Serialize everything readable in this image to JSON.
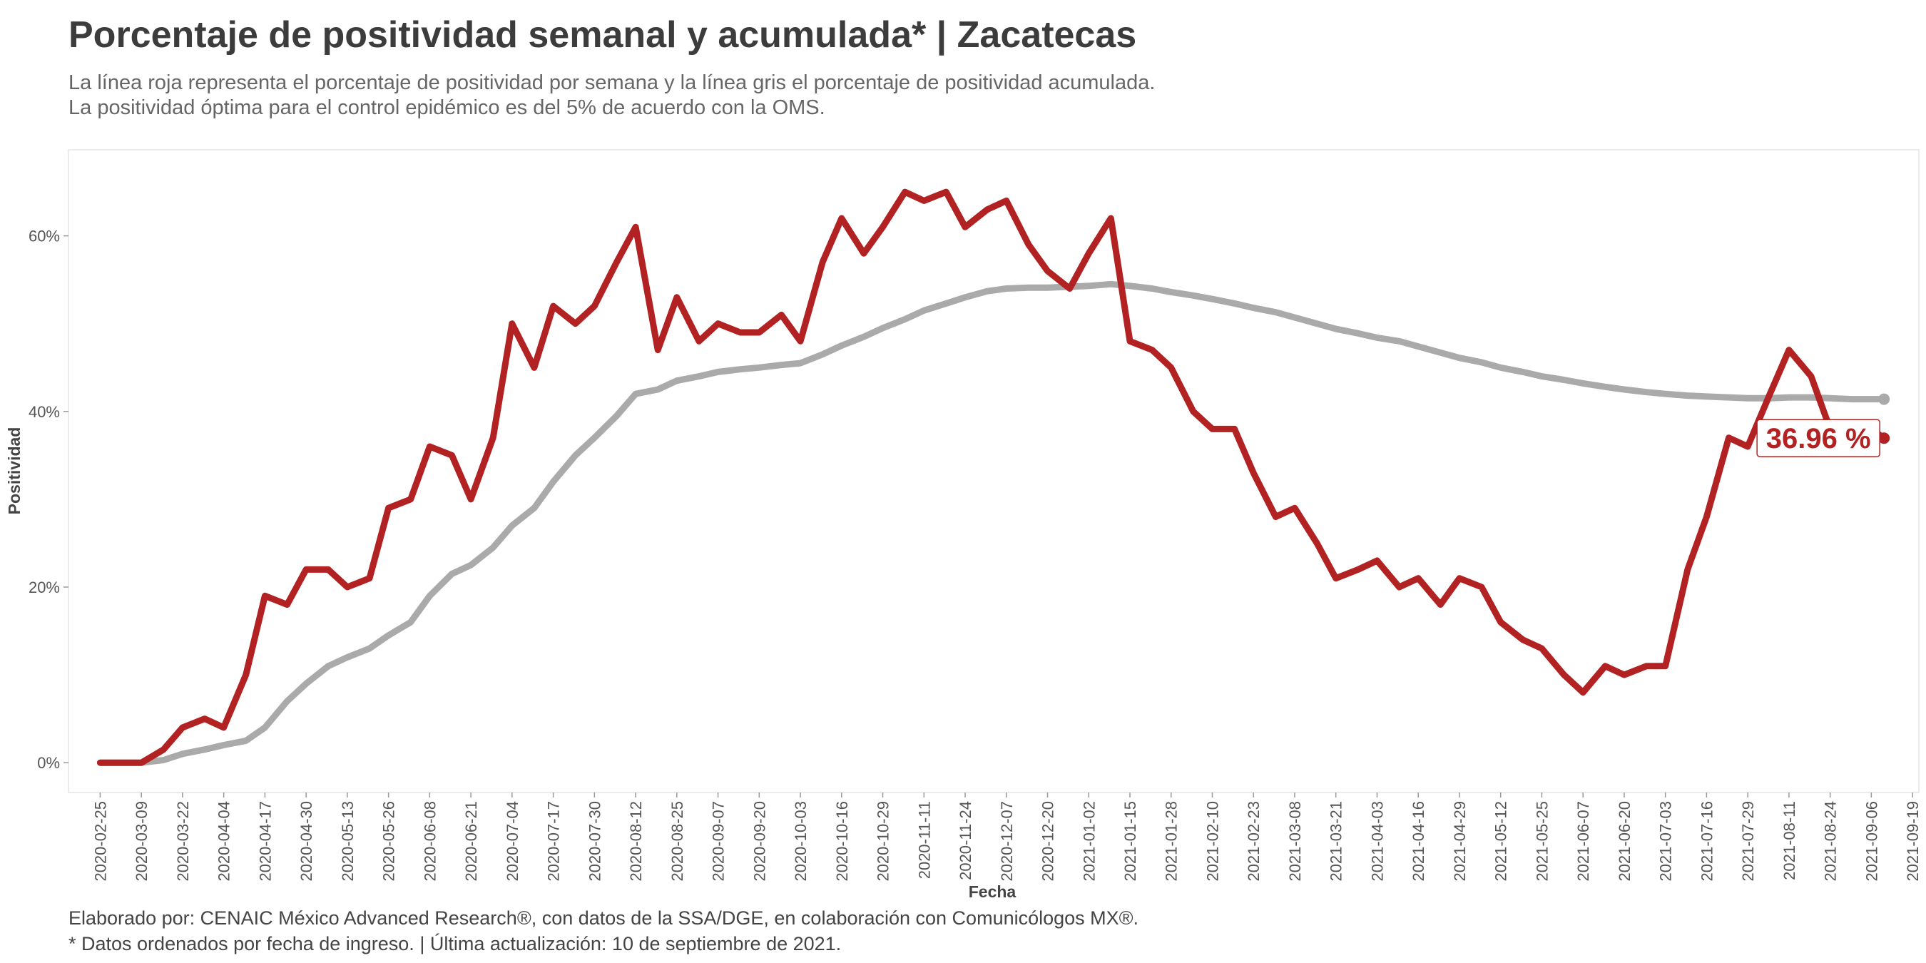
{
  "chart_data": {
    "type": "line",
    "title": "Porcentaje de positividad semanal y acumulada* | Zacatecas",
    "subtitle": [
      "La línea roja representa el porcentaje de positividad por semana y la línea gris el porcentaje de positividad acumulada.",
      "La positividad óptima para el control epidémico es del 5% de acuerdo con la OMS."
    ],
    "xlabel": "Fecha",
    "ylabel": "Positividad",
    "footer": [
      "Elaborado por: CENAIC México Advanced Research®, con datos de la SSA/DGE, en colaboración con Comunicólogos MX®.",
      "* Datos ordenados por fecha de ingreso. | Última actualización: 10 de septiembre de 2021."
    ],
    "x": [
      "2020-02-25",
      "2020-03-03",
      "2020-03-09",
      "2020-03-16",
      "2020-03-22",
      "2020-03-29",
      "2020-04-04",
      "2020-04-11",
      "2020-04-17",
      "2020-04-24",
      "2020-04-30",
      "2020-05-07",
      "2020-05-13",
      "2020-05-20",
      "2020-05-26",
      "2020-06-02",
      "2020-06-08",
      "2020-06-15",
      "2020-06-21",
      "2020-06-28",
      "2020-07-04",
      "2020-07-11",
      "2020-07-17",
      "2020-07-24",
      "2020-07-30",
      "2020-08-06",
      "2020-08-12",
      "2020-08-19",
      "2020-08-25",
      "2020-09-01",
      "2020-09-07",
      "2020-09-14",
      "2020-09-20",
      "2020-09-27",
      "2020-10-03",
      "2020-10-10",
      "2020-10-16",
      "2020-10-23",
      "2020-10-29",
      "2020-11-05",
      "2020-11-11",
      "2020-11-18",
      "2020-11-24",
      "2020-12-01",
      "2020-12-07",
      "2020-12-14",
      "2020-12-20",
      "2020-12-27",
      "2021-01-02",
      "2021-01-09",
      "2021-01-15",
      "2021-01-22",
      "2021-01-28",
      "2021-02-04",
      "2021-02-10",
      "2021-02-17",
      "2021-02-23",
      "2021-03-02",
      "2021-03-08",
      "2021-03-15",
      "2021-03-21",
      "2021-03-28",
      "2021-04-03",
      "2021-04-10",
      "2021-04-16",
      "2021-04-23",
      "2021-04-29",
      "2021-05-06",
      "2021-05-12",
      "2021-05-19",
      "2021-05-25",
      "2021-06-01",
      "2021-06-07",
      "2021-06-14",
      "2021-06-20",
      "2021-06-27",
      "2021-07-03",
      "2021-07-10",
      "2021-07-16",
      "2021-07-23",
      "2021-07-29",
      "2021-08-05",
      "2021-08-11",
      "2021-08-18",
      "2021-08-24",
      "2021-08-31",
      "2021-09-06",
      "2021-09-10"
    ],
    "series": [
      {
        "color": "#b22222",
        "values": [
          0,
          0,
          0,
          1.5,
          4,
          5,
          4,
          10,
          19,
          18,
          22,
          22,
          20,
          21,
          29,
          30,
          36,
          35,
          30,
          37,
          50,
          45,
          52,
          50,
          52,
          57,
          61,
          47,
          53,
          48,
          50,
          49,
          49,
          51,
          48,
          57,
          62,
          58,
          61,
          65,
          64,
          65,
          61,
          63,
          64,
          59,
          56,
          54,
          58,
          62,
          48,
          47,
          45,
          40,
          38,
          38,
          33,
          28,
          29,
          25,
          21,
          22,
          23,
          20,
          21,
          18,
          21,
          20,
          16,
          14,
          13,
          10,
          8,
          11,
          10,
          11,
          11,
          22,
          28,
          37,
          36,
          42,
          47,
          44,
          38,
          38,
          38,
          36.96
        ]
      },
      {
        "color": "#aaaaaa",
        "values": [
          0,
          0,
          0,
          0.3,
          1,
          1.5,
          2,
          2.5,
          4,
          7,
          9,
          11,
          12,
          13,
          14.5,
          16,
          19,
          21.5,
          22.5,
          24.5,
          27,
          29,
          32,
          35,
          37,
          39.5,
          42,
          42.5,
          43.5,
          44,
          44.5,
          44.8,
          45,
          45.3,
          45.5,
          46.5,
          47.5,
          48.5,
          49.5,
          50.5,
          51.5,
          52.3,
          53,
          53.7,
          54,
          54.1,
          54.1,
          54.2,
          54.3,
          54.5,
          54.3,
          54,
          53.6,
          53.2,
          52.8,
          52.3,
          51.8,
          51.3,
          50.7,
          50,
          49.4,
          48.9,
          48.4,
          48,
          47.4,
          46.7,
          46.1,
          45.6,
          45,
          44.5,
          44,
          43.6,
          43.2,
          42.8,
          42.5,
          42.2,
          42,
          41.8,
          41.7,
          41.6,
          41.5,
          41.5,
          41.6,
          41.6,
          41.5,
          41.4,
          41.4,
          41.4
        ]
      }
    ],
    "annotations": [
      {
        "text": "36.96 %",
        "x": "2021-09-10",
        "y": 36.96
      }
    ],
    "xlim": [
      "2020-02-15",
      "2021-09-21"
    ],
    "xticks": [
      "2020-02-25",
      "2020-03-09",
      "2020-03-22",
      "2020-04-04",
      "2020-04-17",
      "2020-04-30",
      "2020-05-13",
      "2020-05-26",
      "2020-06-08",
      "2020-06-21",
      "2020-07-04",
      "2020-07-17",
      "2020-07-30",
      "2020-08-12",
      "2020-08-25",
      "2020-09-07",
      "2020-09-20",
      "2020-10-03",
      "2020-10-16",
      "2020-10-29",
      "2020-11-11",
      "2020-11-24",
      "2020-12-07",
      "2020-12-20",
      "2021-01-02",
      "2021-01-15",
      "2021-01-28",
      "2021-02-10",
      "2021-02-23",
      "2021-03-08",
      "2021-03-21",
      "2021-04-03",
      "2021-04-16",
      "2021-04-29",
      "2021-05-12",
      "2021-05-25",
      "2021-06-07",
      "2021-06-20",
      "2021-07-03",
      "2021-07-16",
      "2021-07-29",
      "2021-08-11",
      "2021-08-24",
      "2021-09-06",
      "2021-09-19"
    ],
    "ylim": [
      -3.4,
      69.8
    ],
    "yticks": [
      {
        "value": 0,
        "label": "0%"
      },
      {
        "value": 20,
        "label": "20%"
      },
      {
        "value": 40,
        "label": "40%"
      },
      {
        "value": 60,
        "label": "60%"
      }
    ],
    "grid": false
  }
}
